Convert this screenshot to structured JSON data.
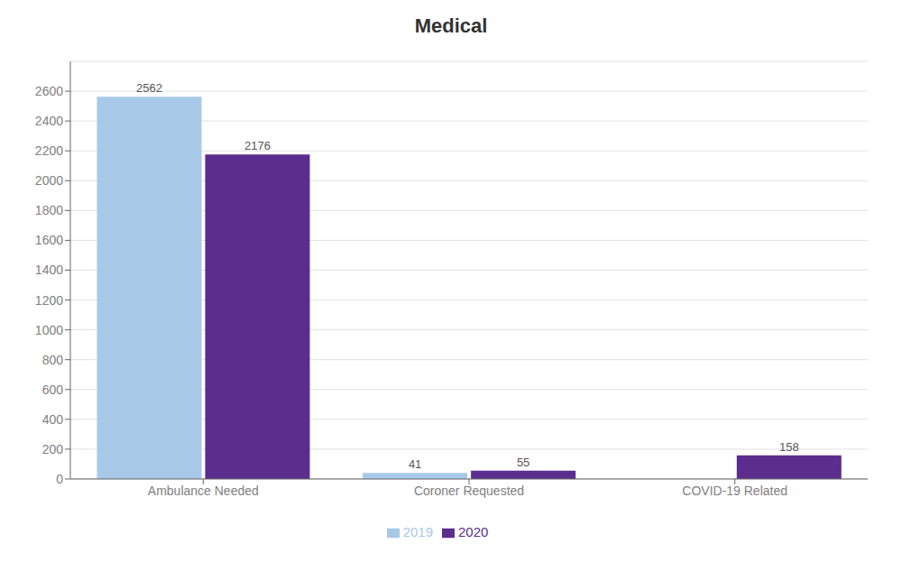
{
  "chart_data": {
    "type": "bar",
    "title": "Medical",
    "categories": [
      "Ambulance Needed",
      "Coroner Requested",
      "COVID-19 Related"
    ],
    "series": [
      {
        "name": "2019",
        "color": "#a8c8e8",
        "values": [
          2562,
          41,
          0
        ]
      },
      {
        "name": "2020",
        "color": "#5b2d8e",
        "values": [
          2176,
          55,
          158
        ]
      }
    ],
    "ylim": [
      0,
      2800
    ],
    "yticks": [
      0,
      200,
      400,
      600,
      800,
      1000,
      1200,
      1400,
      1600,
      1800,
      2000,
      2200,
      2400,
      2600
    ],
    "grid": true,
    "legend": "bottom",
    "data_labels": true
  }
}
